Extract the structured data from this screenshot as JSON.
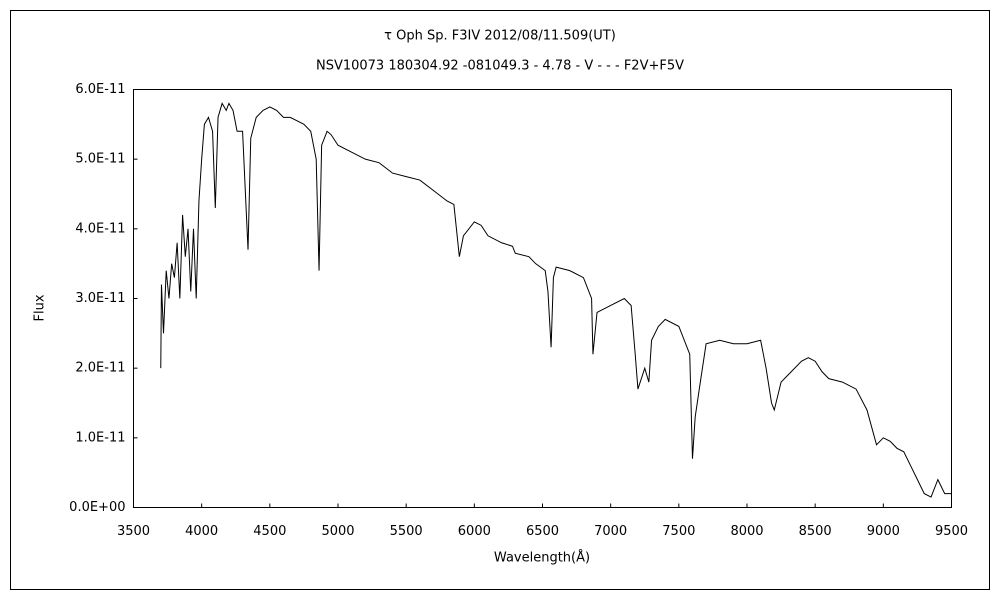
{
  "chart_data": {
    "type": "line",
    "title": "τ Oph    Sp. F3IV    2012/08/11.509(UT)",
    "subtitle": "NSV10073 180304.92 -081049.3 - 4.78 - V - - - F2V+F5V",
    "xlabel": "Wavelength(Å)",
    "ylabel": "Flux",
    "xlim": [
      3500,
      9500
    ],
    "xticks": [
      3500,
      4000,
      4500,
      5000,
      5500,
      6000,
      6500,
      7000,
      7500,
      8000,
      8500,
      9000,
      9500
    ],
    "ylim": [
      0,
      6e-11
    ],
    "yticks": [
      {
        "value": 0,
        "label": "0.0E+00"
      },
      {
        "value": 1e-11,
        "label": "1.0E-11"
      },
      {
        "value": 2e-11,
        "label": "2.0E-11"
      },
      {
        "value": 3e-11,
        "label": "3.0E-11"
      },
      {
        "value": 4e-11,
        "label": "4.0E-11"
      },
      {
        "value": 5e-11,
        "label": "5.0E-11"
      },
      {
        "value": 6e-11,
        "label": "6.0E-11"
      }
    ],
    "x": [
      3700,
      3705,
      3720,
      3740,
      3760,
      3780,
      3800,
      3820,
      3840,
      3860,
      3880,
      3900,
      3920,
      3940,
      3960,
      3980,
      4000,
      4020,
      4050,
      4080,
      4100,
      4120,
      4150,
      4180,
      4200,
      4230,
      4260,
      4300,
      4340,
      4360,
      4400,
      4450,
      4500,
      4550,
      4600,
      4650,
      4700,
      4750,
      4800,
      4840,
      4861,
      4880,
      4920,
      4950,
      5000,
      5100,
      5200,
      5300,
      5400,
      5500,
      5600,
      5700,
      5800,
      5850,
      5890,
      5920,
      6000,
      6050,
      6100,
      6200,
      6280,
      6300,
      6400,
      6450,
      6520,
      6540,
      6563,
      6580,
      6600,
      6700,
      6800,
      6860,
      6870,
      6900,
      7000,
      7100,
      7150,
      7180,
      7200,
      7250,
      7280,
      7300,
      7350,
      7400,
      7500,
      7580,
      7600,
      7620,
      7650,
      7700,
      7800,
      7900,
      8000,
      8100,
      8140,
      8180,
      8200,
      8250,
      8300,
      8400,
      8450,
      8500,
      8550,
      8600,
      8700,
      8800,
      8880,
      8950,
      9000,
      9050,
      9100,
      9150,
      9200,
      9250,
      9300,
      9350,
      9400,
      9450,
      9500
    ],
    "series": [
      {
        "name": "Flux",
        "color": "#000000",
        "values": [
          2e-11,
          3.2e-11,
          2.5e-11,
          3.4e-11,
          3e-11,
          3.5e-11,
          3.3e-11,
          3.8e-11,
          3e-11,
          4.2e-11,
          3.6e-11,
          4e-11,
          3.1e-11,
          4e-11,
          3e-11,
          4.4e-11,
          5e-11,
          5.5e-11,
          5.6e-11,
          5.4e-11,
          4.3e-11,
          5.6e-11,
          5.8e-11,
          5.7e-11,
          5.8e-11,
          5.7e-11,
          5.4e-11,
          5.4e-11,
          3.7e-11,
          5.3e-11,
          5.6e-11,
          5.7e-11,
          5.75e-11,
          5.7e-11,
          5.6e-11,
          5.6e-11,
          5.55e-11,
          5.5e-11,
          5.4e-11,
          5e-11,
          3.4e-11,
          5.2e-11,
          5.4e-11,
          5.35e-11,
          5.2e-11,
          5.1e-11,
          5e-11,
          4.95e-11,
          4.8e-11,
          4.75e-11,
          4.7e-11,
          4.55e-11,
          4.4e-11,
          4.35e-11,
          3.6e-11,
          3.9e-11,
          4.1e-11,
          4.05e-11,
          3.9e-11,
          3.8e-11,
          3.75e-11,
          3.65e-11,
          3.6e-11,
          3.5e-11,
          3.4e-11,
          3.1e-11,
          2.3e-11,
          3.3e-11,
          3.45e-11,
          3.4e-11,
          3.3e-11,
          3e-11,
          2.2e-11,
          2.8e-11,
          2.9e-11,
          3e-11,
          2.9e-11,
          2.2e-11,
          1.7e-11,
          2e-11,
          1.8e-11,
          2.4e-11,
          2.6e-11,
          2.7e-11,
          2.6e-11,
          2.2e-11,
          7e-12,
          1.3e-11,
          1.7e-11,
          2.35e-11,
          2.4e-11,
          2.35e-11,
          2.35e-11,
          2.4e-11,
          2e-11,
          1.5e-11,
          1.4e-11,
          1.8e-11,
          1.9e-11,
          2.1e-11,
          2.15e-11,
          2.1e-11,
          1.95e-11,
          1.85e-11,
          1.8e-11,
          1.7e-11,
          1.4e-11,
          9e-12,
          1e-11,
          9.5e-12,
          8.5e-12,
          8e-12,
          6e-12,
          4e-12,
          2e-12,
          1.5e-12,
          4e-12,
          2e-12,
          2e-12
        ]
      }
    ]
  }
}
